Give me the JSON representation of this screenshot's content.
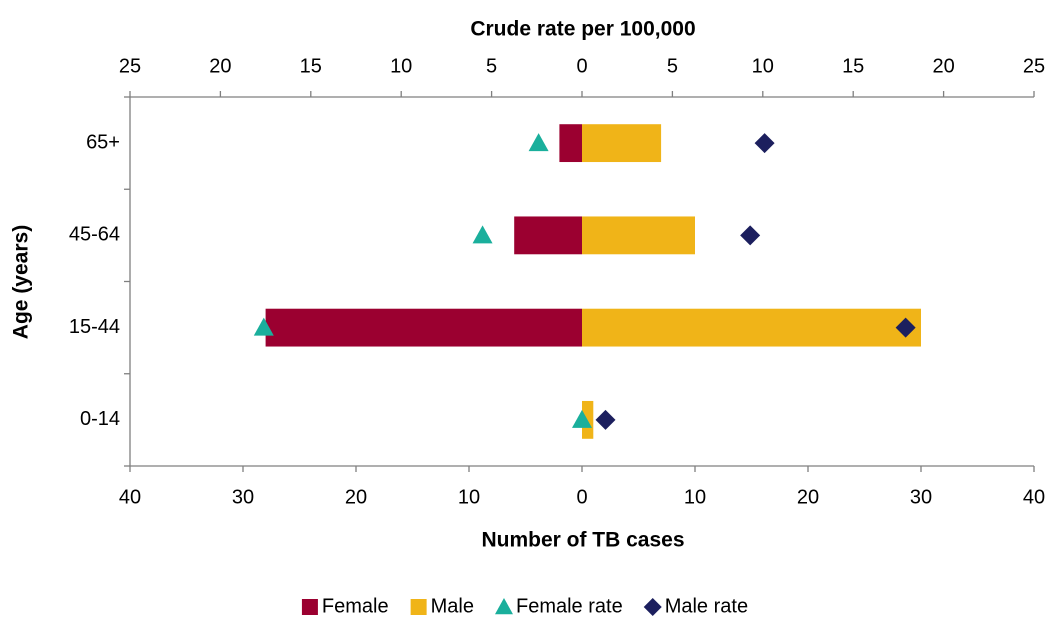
{
  "chart_data": {
    "type": "bar",
    "orientation": "horizontal",
    "x2_label": "Crude rate per 100,000",
    "x_label": "Number of TB cases",
    "y_label": "Age (years)",
    "categories": [
      "0-14",
      "15-44",
      "45-64",
      "65+"
    ],
    "xlim": [
      -40,
      40
    ],
    "xticks": [
      {
        "value": -40,
        "label": "40"
      },
      {
        "value": -30,
        "label": "30"
      },
      {
        "value": -20,
        "label": "20"
      },
      {
        "value": -10,
        "label": "10"
      },
      0,
      10,
      20,
      30,
      40
    ],
    "x2lim": [
      -25,
      25
    ],
    "x2ticks": [
      {
        "value": -25,
        "label": "25"
      },
      {
        "value": -20,
        "label": "20"
      },
      {
        "value": -15,
        "label": "15"
      },
      {
        "value": -10,
        "label": "10"
      },
      {
        "value": -5,
        "label": "5"
      },
      0,
      5,
      10,
      15,
      20,
      25
    ],
    "series": [
      {
        "name": "Female",
        "color": "#9b0030",
        "marker": "bar",
        "values": [
          0,
          -28,
          -6,
          -2
        ]
      },
      {
        "name": "Male",
        "color": "#f0b418",
        "marker": "bar",
        "values": [
          1,
          30,
          10,
          7
        ]
      },
      {
        "name": "Female rate",
        "color": "#1aaf9c",
        "marker": "triangle",
        "axis": "x2",
        "values": [
          0,
          -17.6,
          -5.5,
          -2.4
        ]
      },
      {
        "name": "Male rate",
        "color": "#1c1f5e",
        "marker": "diamond",
        "axis": "x2",
        "values": [
          1.3,
          17.9,
          9.3,
          10.1
        ]
      }
    ]
  }
}
